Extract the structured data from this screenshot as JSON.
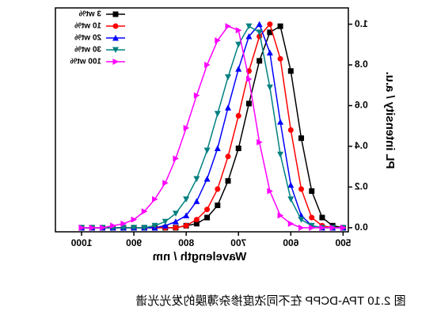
{
  "chart_data": {
    "type": "line",
    "xlabel": "Wavelength / nm",
    "ylabel": "PL intensity / a.u.",
    "caption": "图 2.10 TPA-DCPP 在不同浓度掺杂薄膜的发光光谱",
    "x": [
      500,
      520,
      540,
      560,
      580,
      600,
      620,
      640,
      660,
      680,
      700,
      720,
      740,
      760,
      780,
      800,
      820,
      840,
      860,
      880,
      900,
      920,
      940,
      960,
      980,
      1000
    ],
    "series": [
      {
        "name": "3 wt%",
        "color": "#000000",
        "marker": "square",
        "values": [
          0.0,
          0.01,
          0.05,
          0.18,
          0.44,
          0.77,
          0.99,
          0.96,
          0.82,
          0.61,
          0.39,
          0.23,
          0.11,
          0.05,
          0.02,
          0.01,
          0,
          0,
          0,
          0,
          0,
          0,
          0,
          0,
          0,
          0
        ]
      },
      {
        "name": "10 wt%",
        "color": "#ff0000",
        "marker": "circle",
        "values": [
          0,
          0.0,
          0.01,
          0.05,
          0.19,
          0.48,
          0.83,
          1.0,
          0.94,
          0.77,
          0.55,
          0.35,
          0.19,
          0.09,
          0.04,
          0.01,
          0.0,
          0,
          0,
          0,
          0,
          0,
          0,
          0,
          0,
          0
        ]
      },
      {
        "name": "20 wt%",
        "color": "#0000ff",
        "marker": "triangle-up",
        "values": [
          0,
          0,
          0.0,
          0.01,
          0.06,
          0.21,
          0.52,
          0.86,
          1.0,
          0.94,
          0.78,
          0.59,
          0.39,
          0.24,
          0.13,
          0.06,
          0.03,
          0.01,
          0.0,
          0,
          0,
          0,
          0,
          0,
          0,
          0
        ]
      },
      {
        "name": "30 wt%",
        "color": "#008080",
        "marker": "triangle-down",
        "values": [
          0,
          0,
          0.0,
          0.01,
          0.04,
          0.14,
          0.36,
          0.69,
          0.96,
          0.99,
          0.9,
          0.74,
          0.56,
          0.38,
          0.24,
          0.14,
          0.07,
          0.03,
          0.01,
          0.0,
          0,
          0,
          0,
          0,
          0,
          0
        ]
      },
      {
        "name": "100 wt%",
        "color": "#ff00ff",
        "marker": "triangle-left",
        "values": [
          0,
          0,
          0,
          0.0,
          0.0,
          0.02,
          0.06,
          0.18,
          0.42,
          0.73,
          0.97,
          0.99,
          0.92,
          0.8,
          0.65,
          0.49,
          0.34,
          0.22,
          0.14,
          0.08,
          0.04,
          0.02,
          0.01,
          0,
          0,
          0
        ]
      }
    ],
    "xlim": [
      490,
      1050
    ],
    "ylim": [
      -0.02,
      1.08
    ],
    "xticks": [
      500,
      600,
      700,
      800,
      900,
      1000
    ],
    "yticks": [
      {
        "value": 0,
        "label": "0.0"
      },
      0.2,
      0.4,
      0.6,
      0.8,
      {
        "value": 1,
        "label": "1.0"
      }
    ],
    "legend": "upper right",
    "grid": false
  }
}
